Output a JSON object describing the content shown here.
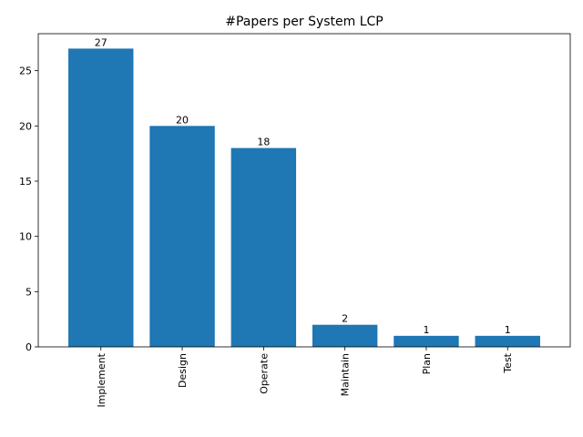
{
  "chart_data": {
    "type": "bar",
    "title": "#Papers per System LCP",
    "xlabel": "",
    "ylabel": "",
    "categories": [
      "Implement",
      "Design",
      "Operate",
      "Maintain",
      "Plan",
      "Test"
    ],
    "values": [
      27,
      20,
      18,
      2,
      1,
      1
    ],
    "data_labels": [
      "27",
      "20",
      "18",
      "2",
      "1",
      "1"
    ],
    "ylim": [
      0,
      28.35
    ],
    "yticks": [
      0,
      5,
      10,
      15,
      20,
      25
    ],
    "ytick_labels": [
      "0",
      "5",
      "10",
      "15",
      "20",
      "25"
    ],
    "grid": false,
    "bar_color": "#1f77b4"
  }
}
